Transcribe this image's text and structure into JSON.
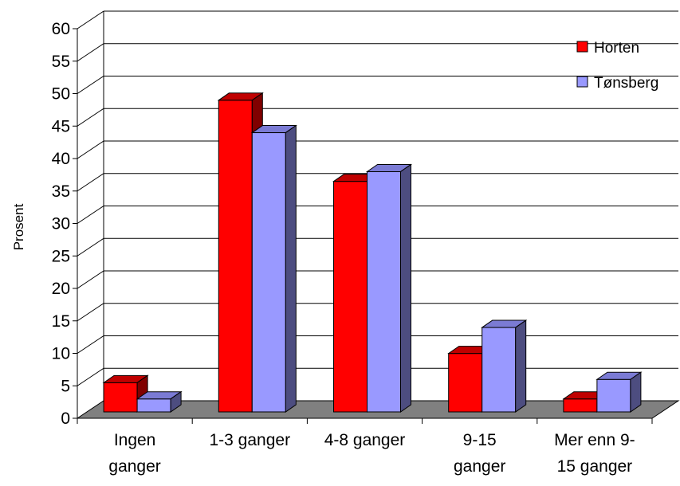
{
  "chart_data": {
    "type": "bar",
    "style": "3d-clustered-column",
    "title": "",
    "xlabel": "",
    "ylabel": "Prosent",
    "ylim": [
      0,
      60
    ],
    "yticks": [
      0,
      5,
      10,
      15,
      20,
      25,
      30,
      35,
      40,
      45,
      50,
      55,
      60
    ],
    "categories": [
      [
        "Ingen",
        "ganger"
      ],
      [
        "1-3 ganger"
      ],
      [
        "4-8 ganger"
      ],
      [
        "9-15",
        "ganger"
      ],
      [
        "Mer enn 9-",
        "15 ganger"
      ]
    ],
    "series": [
      {
        "name": "Horten",
        "values": [
          4.5,
          48,
          35.5,
          9,
          2
        ],
        "color": "#ff0000",
        "top_color": "#c00000",
        "side_color": "#800000"
      },
      {
        "name": "Tønsberg",
        "values": [
          2,
          43,
          37,
          13,
          5
        ],
        "color": "#9999ff",
        "top_color": "#7b7bd4",
        "side_color": "#4d4d80"
      }
    ],
    "grid": true,
    "legend": "top-right",
    "floor_color": "#808080"
  }
}
